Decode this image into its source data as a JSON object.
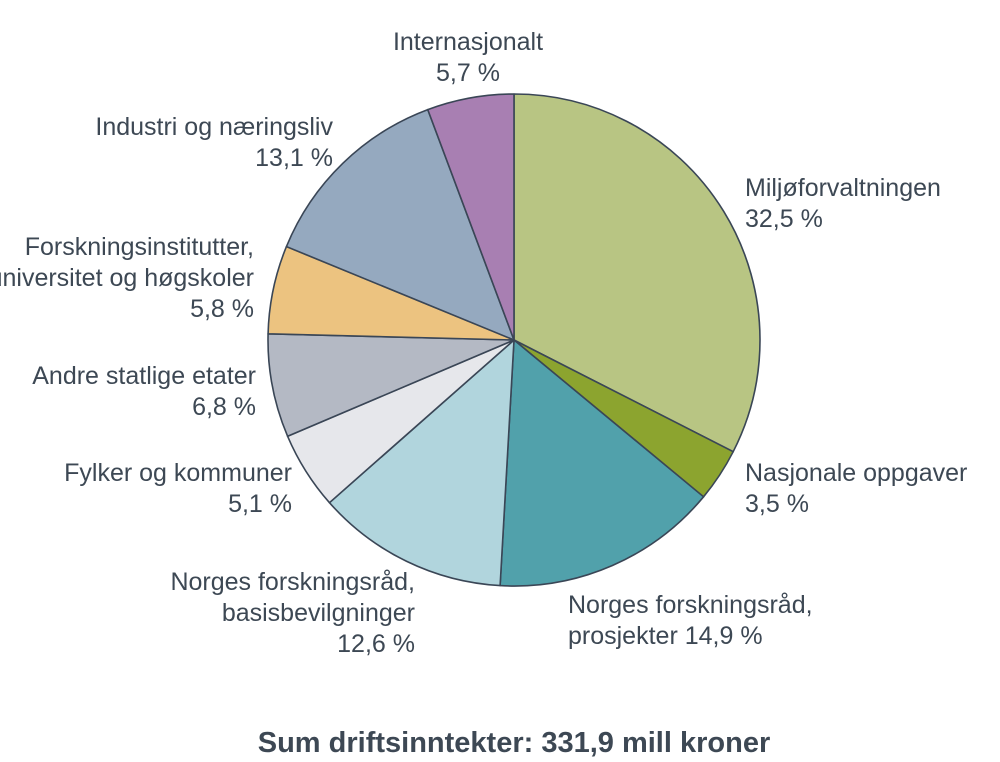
{
  "chart_data": {
    "type": "pie",
    "title": "",
    "footer": "Sum driftsinntekter: 331,9 mill kroner",
    "start": "12 o'clock",
    "direction": "clockwise",
    "slices": [
      {
        "lines": [
          "Miljøforvaltningen",
          "32,5 %"
        ],
        "value": 32.5,
        "color": "#b8c583"
      },
      {
        "lines": [
          "Nasjonale oppgaver",
          "3,5 %"
        ],
        "value": 3.5,
        "color": "#8ca42f"
      },
      {
        "lines": [
          "Norges forskningsråd,",
          "prosjekter 14,9 %"
        ],
        "value": 14.9,
        "color": "#51a1ab"
      },
      {
        "lines": [
          "Norges forskningsråd,",
          "basisbevilgninger",
          "12,6 %"
        ],
        "value": 12.6,
        "color": "#b1d5dd"
      },
      {
        "lines": [
          "Fylker og kommuner",
          "5,1 %"
        ],
        "value": 5.1,
        "color": "#e6e7eb"
      },
      {
        "lines": [
          "Andre statlige etater",
          "6,8 %"
        ],
        "value": 6.8,
        "color": "#b4b9c4"
      },
      {
        "lines": [
          "Forskningsinstitutter,",
          "universitet og høgskoler",
          "5,8 %"
        ],
        "value": 5.8,
        "color": "#ecc380"
      },
      {
        "lines": [
          "Industri og næringsliv",
          "13,1 %"
        ],
        "value": 13.1,
        "color": "#95a9bf"
      },
      {
        "lines": [
          "Internasjonalt",
          "5,7 %"
        ],
        "value": 5.7,
        "color": "#a87fb2"
      }
    ]
  }
}
